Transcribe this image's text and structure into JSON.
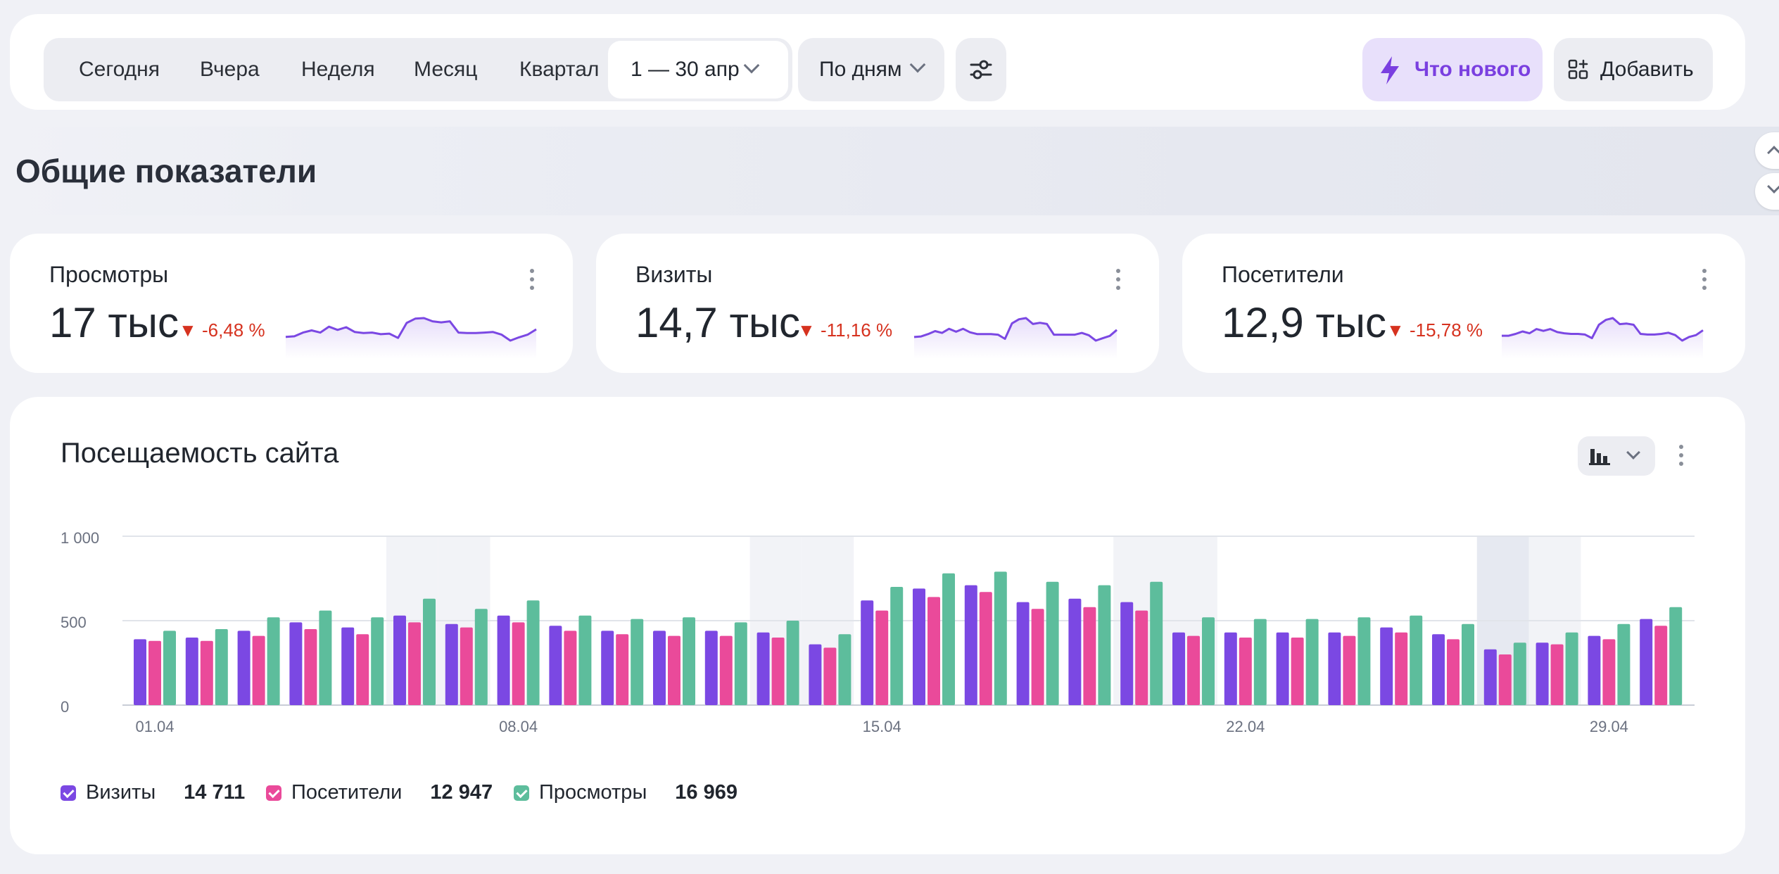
{
  "toolbar": {
    "periods": [
      "Сегодня",
      "Вчера",
      "Неделя",
      "Месяц",
      "Квартал"
    ],
    "date_range": "1 — 30 апр",
    "grouping": "По дням",
    "whats_new": "Что нового",
    "add": "Добавить"
  },
  "section": {
    "title": "Общие показатели"
  },
  "metrics": [
    {
      "label": "Просмотры",
      "value": "17 тыс",
      "delta": "-6,48 %"
    },
    {
      "label": "Визиты",
      "value": "14,7 тыс",
      "delta": "-11,16 %"
    },
    {
      "label": "Посетители",
      "value": "12,9 тыс",
      "delta": "-15,78 %"
    }
  ],
  "colors": {
    "visits": "#7b48e3",
    "visitors": "#ea4a9a",
    "views": "#5dbd9c",
    "accent_bg": "#e8e0fb",
    "accent_fg": "#7a3fe0",
    "negative": "#d6321f"
  },
  "chart": {
    "title": "Посещаемость сайта",
    "legend": [
      {
        "label": "Визиты",
        "total": "14 711"
      },
      {
        "label": "Посетители",
        "total": "12 947"
      },
      {
        "label": "Просмотры",
        "total": "16 969"
      }
    ]
  },
  "chart_data": {
    "type": "bar",
    "categories": [
      "01.04",
      "02.04",
      "03.04",
      "04.04",
      "05.04",
      "06.04",
      "07.04",
      "08.04",
      "09.04",
      "10.04",
      "11.04",
      "12.04",
      "13.04",
      "14.04",
      "15.04",
      "16.04",
      "17.04",
      "18.04",
      "19.04",
      "20.04",
      "21.04",
      "22.04",
      "23.04",
      "24.04",
      "25.04",
      "26.04",
      "27.04",
      "28.04",
      "29.04",
      "30.04"
    ],
    "x_tick_labels": [
      "01.04",
      "08.04",
      "15.04",
      "22.04",
      "29.04"
    ],
    "y_ticks": [
      "0",
      "500",
      "1 000"
    ],
    "ylim": [
      0,
      1000
    ],
    "weekend_shading": [
      "06.04",
      "07.04",
      "13.04",
      "14.04",
      "20.04",
      "21.04",
      "27.04",
      "28.04"
    ],
    "series": [
      {
        "name": "Визиты",
        "values": [
          390,
          400,
          440,
          490,
          460,
          530,
          480,
          530,
          470,
          440,
          440,
          440,
          430,
          360,
          620,
          690,
          710,
          610,
          630,
          610,
          430,
          430,
          430,
          430,
          460,
          420,
          330,
          370,
          410,
          510
        ]
      },
      {
        "name": "Посетители",
        "values": [
          380,
          380,
          410,
          450,
          420,
          490,
          460,
          490,
          440,
          420,
          410,
          410,
          400,
          340,
          560,
          640,
          670,
          570,
          580,
          560,
          410,
          400,
          400,
          410,
          430,
          390,
          300,
          360,
          390,
          470
        ]
      },
      {
        "name": "Просмотры",
        "values": [
          440,
          450,
          520,
          560,
          520,
          630,
          570,
          620,
          530,
          510,
          520,
          490,
          500,
          420,
          700,
          780,
          790,
          730,
          710,
          730,
          520,
          510,
          510,
          520,
          530,
          480,
          370,
          430,
          480,
          580
        ]
      }
    ]
  },
  "sparklines": [
    [
      440,
      450,
      520,
      560,
      520,
      630,
      570,
      620,
      530,
      510,
      520,
      490,
      500,
      420,
      700,
      780,
      790,
      730,
      710,
      730,
      520,
      510,
      510,
      520,
      530,
      480,
      370,
      430,
      480,
      580
    ],
    [
      390,
      400,
      440,
      490,
      460,
      530,
      480,
      530,
      470,
      440,
      440,
      440,
      430,
      360,
      620,
      690,
      710,
      610,
      630,
      610,
      430,
      430,
      430,
      430,
      460,
      420,
      330,
      370,
      410,
      510
    ],
    [
      380,
      380,
      410,
      450,
      420,
      490,
      460,
      490,
      440,
      420,
      410,
      410,
      400,
      340,
      560,
      640,
      670,
      570,
      580,
      560,
      410,
      400,
      400,
      410,
      430,
      390,
      300,
      360,
      390,
      470
    ]
  ]
}
